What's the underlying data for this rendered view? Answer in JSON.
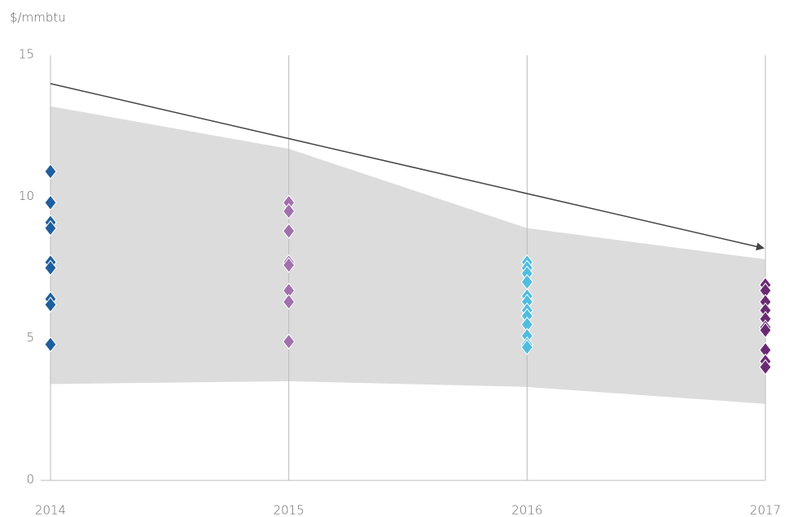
{
  "chart_data": {
    "type": "scatter",
    "y_label": "$/mmbtu",
    "xlim": [
      2014,
      2017
    ],
    "xticks": [
      2014,
      2015,
      2016,
      2017
    ],
    "ylim": [
      0,
      15
    ],
    "yticks": [
      0,
      5,
      10,
      15
    ],
    "grid": true,
    "band": {
      "x": [
        2014,
        2015,
        2016,
        2017
      ],
      "upper": [
        13.2,
        11.7,
        8.9,
        7.8
      ],
      "lower": [
        3.4,
        3.5,
        3.3,
        2.7
      ],
      "color": "#dcdcdd"
    },
    "trend": {
      "x": [
        2014,
        2017
      ],
      "values": [
        14.0,
        8.2
      ],
      "color": "#444444"
    },
    "series": [
      {
        "x": 2014,
        "color": "#1f5f9e",
        "values": [
          10.9,
          9.8,
          9.1,
          8.9,
          7.7,
          7.5,
          6.4,
          6.2,
          4.8
        ]
      },
      {
        "x": 2015,
        "color": "#a070ad",
        "values": [
          9.8,
          9.5,
          8.8,
          7.7,
          7.6,
          6.7,
          6.3,
          4.9
        ]
      },
      {
        "x": 2016,
        "color": "#4fbde0",
        "values": [
          7.7,
          7.5,
          7.3,
          7.0,
          6.5,
          6.3,
          6.0,
          5.8,
          5.5,
          5.1,
          4.8,
          4.7
        ]
      },
      {
        "x": 2017,
        "color": "#6a2a73",
        "values": [
          6.9,
          6.7,
          6.3,
          6.0,
          5.7,
          5.4,
          5.3,
          4.6,
          4.2,
          4.0
        ]
      }
    ]
  }
}
